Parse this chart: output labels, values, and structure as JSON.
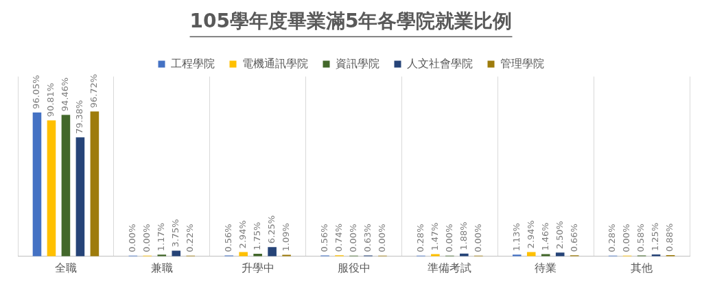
{
  "chart_data": {
    "type": "bar",
    "title": "105學年度畢業滿5年各學院就業比例",
    "categories": [
      "全職",
      "兼職",
      "升學中",
      "服役中",
      "準備考試",
      "待業",
      "其他"
    ],
    "legend": "top",
    "grid": "x",
    "data_labels": true,
    "series": [
      {
        "name": "工程學院",
        "color": "#4472c4",
        "values": [
          96.05,
          0.0,
          0.56,
          0.56,
          0.28,
          1.13,
          0.28
        ],
        "value_labels": [
          "96.05%",
          "0.00%",
          "0.56%",
          "0.56%",
          "0.28%",
          "1.13%",
          "0.28%"
        ]
      },
      {
        "name": "電機通訊學院",
        "color": "#ffc000",
        "values": [
          90.81,
          0.0,
          2.94,
          0.74,
          1.47,
          2.94,
          0.0
        ],
        "value_labels": [
          "90.81%",
          "0.00%",
          "2.94%",
          "0.74%",
          "1.47%",
          "2.94%",
          "0.00%"
        ]
      },
      {
        "name": "資訊學院",
        "color": "#43682b",
        "values": [
          94.46,
          1.17,
          1.75,
          0.0,
          0.0,
          1.46,
          0.58
        ],
        "value_labels": [
          "94.46%",
          "1.17%",
          "1.75%",
          "0.00%",
          "0.00%",
          "1.46%",
          "0.58%"
        ]
      },
      {
        "name": "人文社會學院",
        "color": "#264478",
        "values": [
          79.38,
          3.75,
          6.25,
          0.63,
          1.88,
          2.5,
          1.25
        ],
        "value_labels": [
          "79.38%",
          "3.75%",
          "6.25%",
          "0.63%",
          "1.88%",
          "2.50%",
          "1.25%"
        ]
      },
      {
        "name": "管理學院",
        "color": "#9e7c0c",
        "values": [
          96.72,
          0.22,
          1.09,
          0.0,
          0.0,
          0.66,
          0.88
        ],
        "value_labels": [
          "96.72%",
          "0.22%",
          "1.09%",
          "0.00%",
          "0.00%",
          "0.66%",
          "0.88%"
        ]
      }
    ]
  }
}
